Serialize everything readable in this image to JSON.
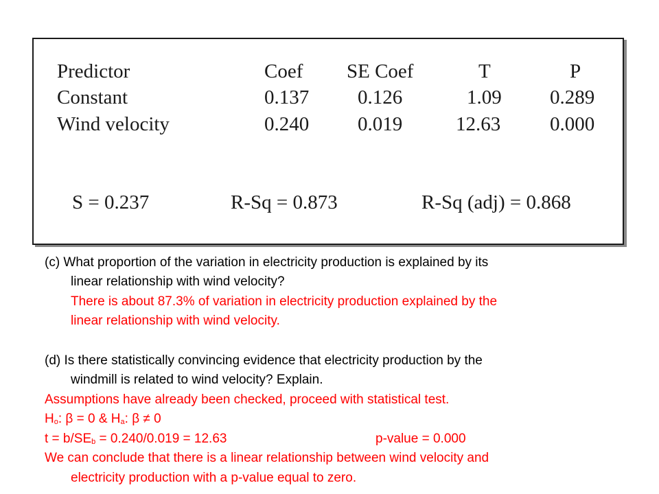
{
  "table": {
    "headers": [
      "Predictor",
      "Coef",
      "SE Coef",
      "T",
      "P"
    ],
    "rows": [
      [
        "Constant",
        "0.137",
        "0.126",
        "1.09",
        "0.289"
      ],
      [
        "Wind velocity",
        "0.240",
        "0.019",
        "12.63",
        "0.000"
      ]
    ],
    "summary": {
      "s": "S = 0.237",
      "rsq": "R-Sq = 0.873",
      "rsq_adj": "R-Sq (adj) = 0.868"
    }
  },
  "part_c": {
    "question_line1": "(c) What proportion of the variation in electricity production is explained by its",
    "question_line2": "linear relationship with wind velocity?",
    "answer_line1": "There is about 87.3% of variation in electricity production explained by the",
    "answer_line2": "linear relationship with wind velocity."
  },
  "part_d": {
    "question_line1": "(d) Is there statistically convincing evidence that electricity production by the",
    "question_line2": "windmill is related to wind velocity? Explain.",
    "assumptions": "Assumptions have already been checked, proceed with statistical test.",
    "h0_prefix": "H",
    "h0_sub": "o",
    "h0_rest": ": β = 0  & H",
    "ha_sub": "a",
    "ha_rest": ": β ≠ 0",
    "t_prefix": "t = b/SE",
    "t_sub": "b",
    "t_rest": " = 0.240/0.019 = 12.63",
    "pvalue": "p-value = 0.000",
    "conclusion_line1": "We can conclude that there is a linear relationship between wind velocity and",
    "conclusion_line2": "electricity production with a p-value equal to zero."
  }
}
